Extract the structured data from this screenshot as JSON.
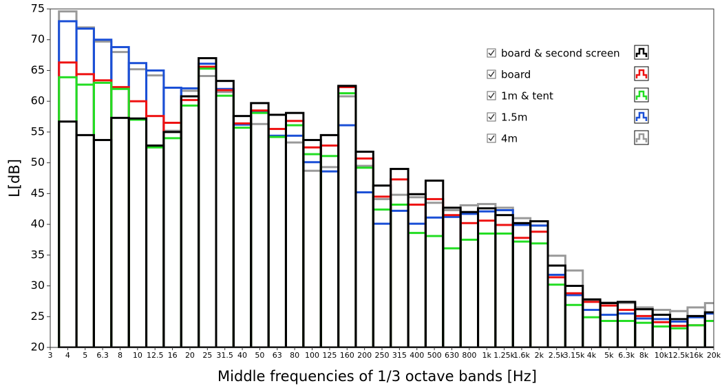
{
  "chart_data": {
    "type": "step-bar",
    "x_label": "Middle frequencies of 1/3 octave bands [Hz]",
    "y_label": "L[dB]",
    "categories": [
      "3",
      "4",
      "5",
      "6.3",
      "8",
      "10",
      "12.5",
      "16",
      "20",
      "25",
      "31.5",
      "40",
      "50",
      "63",
      "80",
      "100",
      "125",
      "160",
      "200",
      "250",
      "315",
      "400",
      "500",
      "630",
      "800",
      "1k",
      "1.25k",
      "1.6k",
      "2k",
      "2.5k",
      "3.15k",
      "4k",
      "5k",
      "6.3k",
      "8k",
      "10k",
      "12.5k",
      "16k",
      "20k"
    ],
    "ylim": [
      20,
      75
    ],
    "yticks": [
      20,
      25,
      30,
      35,
      40,
      45,
      50,
      55,
      60,
      65,
      70,
      75
    ],
    "legend": "upper right",
    "series": [
      {
        "name": "4m",
        "color": "#999999",
        "values": [
          null,
          74.6,
          72,
          69.7,
          68,
          65.2,
          64.2,
          55.2,
          61.7,
          64.1,
          61.5,
          56.3,
          56.3,
          54.2,
          53.3,
          48.7,
          49.3,
          60.8,
          49.5,
          44.1,
          44.8,
          44.4,
          43.5,
          42.3,
          43.1,
          43.3,
          42.7,
          41,
          39.8,
          34.9,
          32.5,
          27.6,
          27.3,
          27.2,
          26.5,
          26.1,
          25.9,
          26.5,
          27.2
        ]
      },
      {
        "name": "1.5m",
        "color": "#1a4fd6",
        "values": [
          null,
          73,
          71.8,
          70,
          68.8,
          66.2,
          65,
          62.2,
          62.1,
          66.1,
          62,
          56.2,
          58.2,
          54.4,
          54.4,
          50.1,
          48.6,
          56.1,
          45.2,
          40.1,
          42.2,
          40.1,
          41.1,
          41.2,
          41.7,
          42.1,
          42.3,
          39.9,
          39.8,
          31.8,
          28.5,
          26.1,
          25.3,
          25.5,
          24.7,
          24.6,
          24.2,
          24.9,
          25.5
        ]
      },
      {
        "name": "board",
        "color": "#ee1111",
        "values": [
          null,
          66.3,
          64.4,
          63.4,
          62.3,
          60,
          57.6,
          56.5,
          60.2,
          65.6,
          61.8,
          56.4,
          58.5,
          55.5,
          56.8,
          52.5,
          52.8,
          62.3,
          50.7,
          44.5,
          47.3,
          43.2,
          44.1,
          41.5,
          40.2,
          40.6,
          39.9,
          37.8,
          38.8,
          31.4,
          28.8,
          27.4,
          26.8,
          26.1,
          25.1,
          24.1,
          23.5,
          23.6,
          24.3
        ]
      },
      {
        "name": "1m & tent",
        "color": "#22dd22",
        "values": [
          null,
          63.9,
          62.7,
          63,
          62,
          57,
          52.5,
          54,
          59.3,
          65.3,
          60.9,
          55.7,
          58.1,
          54.2,
          56.1,
          51.4,
          51.1,
          61.3,
          49.2,
          42.4,
          43.2,
          38.6,
          38.1,
          36.1,
          37.5,
          38.5,
          38.5,
          37.2,
          36.9,
          30.2,
          26.9,
          24.9,
          24.3,
          24.3,
          24,
          23.4,
          23.1,
          23.6,
          24.3
        ]
      },
      {
        "name": "board & second screen",
        "color": "#000000",
        "values": [
          null,
          56.7,
          54.5,
          53.7,
          57.3,
          57.2,
          52.8,
          55,
          60.8,
          67,
          63.3,
          57.6,
          59.7,
          57.8,
          58.1,
          53.7,
          54.5,
          62.5,
          51.8,
          46.3,
          49,
          44.9,
          47.1,
          42.7,
          42,
          42.6,
          41.5,
          40.2,
          40.5,
          33.3,
          30,
          27.8,
          27.2,
          27.4,
          26.2,
          25.3,
          24.6,
          25.1,
          25.7
        ]
      }
    ],
    "legend_order": [
      4,
      2,
      3,
      1,
      0
    ]
  }
}
